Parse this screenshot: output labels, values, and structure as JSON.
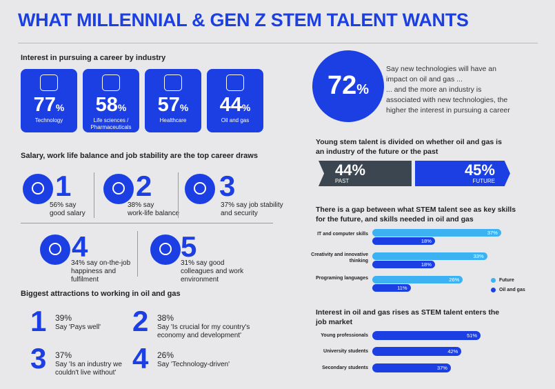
{
  "title": "WHAT MILLENNIAL & GEN Z STEM TALENT WANTS",
  "industry": {
    "heading": "Interest in pursuing a career by industry",
    "tiles": [
      {
        "value": "77",
        "unit": "%",
        "label": [
          "Technology"
        ]
      },
      {
        "value": "58",
        "unit": "%",
        "label": [
          "Life sciences /",
          "Pharmaceuticals"
        ]
      },
      {
        "value": "57",
        "unit": "%",
        "label": [
          "Healthcare"
        ]
      },
      {
        "value": "44",
        "unit": "%",
        "label": [
          "Oil and gas"
        ]
      }
    ]
  },
  "draws": {
    "heading": "Salary, work life balance and job stability are the top career draws",
    "items": [
      {
        "rank": "1",
        "lines": [
          "56% say",
          "good salary"
        ]
      },
      {
        "rank": "2",
        "lines": [
          "38% say",
          "work-life balance"
        ]
      },
      {
        "rank": "3",
        "lines": [
          "37% say job stability",
          "and  security"
        ]
      },
      {
        "rank": "4",
        "lines": [
          "34% say on-the-job",
          "happiness and",
          "fulfilment"
        ]
      },
      {
        "rank": "5",
        "lines": [
          "31% say good",
          "colleagues and work",
          "environment"
        ]
      }
    ]
  },
  "attractions": {
    "heading": "Biggest attractions to working in oil and gas",
    "items": [
      {
        "rank": "1",
        "percent": "39%",
        "lines": [
          "Say 'Pays well'"
        ]
      },
      {
        "rank": "2",
        "percent": "38%",
        "lines": [
          "Say 'Is crucial for my country's",
          "economy and development'"
        ]
      },
      {
        "rank": "3",
        "percent": "37%",
        "lines": [
          "Say 'Is an industry we",
          "couldn't live without'"
        ]
      },
      {
        "rank": "4",
        "percent": "26%",
        "lines": [
          "Say 'Technology-driven'"
        ]
      }
    ]
  },
  "stat": {
    "value": "72",
    "unit": "%",
    "lines": [
      "Say new technologies will have an",
      "impact on oil and gas ...",
      "... and the more an industry is",
      "associated with new technologies, the",
      "higher the interest in pursuing a career"
    ]
  },
  "chart_data": [
    {
      "type": "split",
      "title": [
        "Young stem talent is divided on whether oil and gas is",
        "an industry of the future or the past"
      ],
      "categories": [
        "PAST",
        "FUTURE"
      ],
      "values": [
        44,
        45
      ],
      "value_labels": [
        "44%",
        "45%"
      ],
      "colors": [
        "#3b4650",
        "#1b3fe3"
      ]
    },
    {
      "type": "hbar",
      "title": [
        "There is a gap between what STEM talent see as key skills",
        "for the future, and skills needed in oil and gas"
      ],
      "categories": [
        "IT and computer skills",
        "Creativity and innovative thinking",
        "Programing languages"
      ],
      "series": [
        {
          "name": "Future",
          "color": "#3db2f2",
          "values": [
            37,
            33,
            26
          ],
          "value_labels": [
            "37%",
            "33%",
            "26%"
          ]
        },
        {
          "name": "Oil and gas",
          "color": "#1b3fe3",
          "values": [
            18,
            18,
            11
          ],
          "value_labels": [
            "18%",
            "18%",
            "11%"
          ]
        }
      ]
    },
    {
      "type": "hbar",
      "title": [
        "Interest in oil and gas rises as STEM talent enters the",
        "job market"
      ],
      "categories": [
        "Young professionals",
        "University students",
        "Secondary students"
      ],
      "series": [
        {
          "color": "#1b3fe3",
          "values": [
            51,
            42,
            37
          ],
          "value_labels": [
            "51%",
            "42%",
            "37%"
          ]
        }
      ]
    }
  ]
}
